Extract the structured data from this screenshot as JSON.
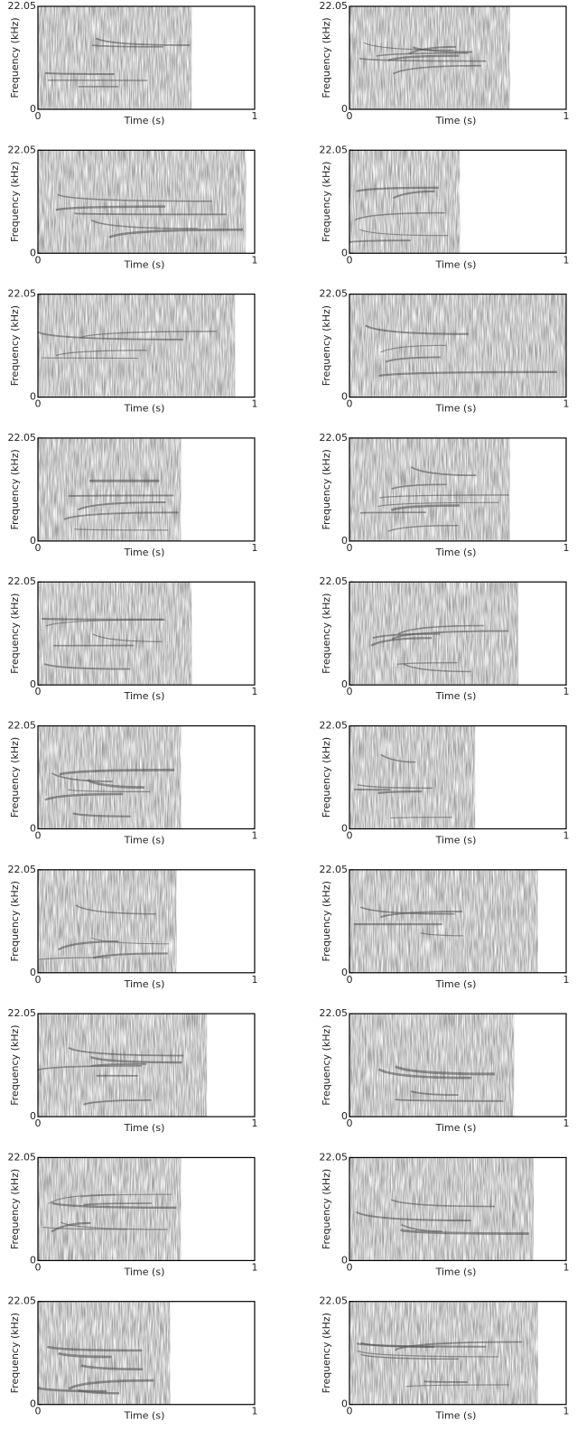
{
  "chart_data": [
    {
      "type": "spectrogram",
      "xlabel": "Time (s)",
      "ylabel": "Frequency (kHz)",
      "xlim": [
        0,
        1
      ],
      "ylim": [
        0,
        22.05
      ],
      "xticks": [
        0,
        1
      ],
      "yticks": [
        0,
        22.05
      ],
      "duration": 0.71
    },
    {
      "type": "spectrogram",
      "xlabel": "Time (s)",
      "ylabel": "Frequency (kHz)",
      "xlim": [
        0,
        1
      ],
      "ylim": [
        0,
        22.05
      ],
      "xticks": [
        0,
        1
      ],
      "yticks": [
        0,
        22.05
      ],
      "duration": 0.74
    },
    {
      "type": "spectrogram",
      "xlabel": "Time (s)",
      "ylabel": "Frequency (kHz)",
      "xlim": [
        0,
        1
      ],
      "ylim": [
        0,
        22.05
      ],
      "xticks": [
        0,
        1
      ],
      "yticks": [
        0,
        22.05
      ],
      "duration": 0.96
    },
    {
      "type": "spectrogram",
      "xlabel": "Time (s)",
      "ylabel": "Frequency (kHz)",
      "xlim": [
        0,
        1
      ],
      "ylim": [
        0,
        22.05
      ],
      "xticks": [
        0,
        1
      ],
      "yticks": [
        0,
        22.05
      ],
      "duration": 0.51
    },
    {
      "type": "spectrogram",
      "xlabel": "Time (s)",
      "ylabel": "Frequency (kHz)",
      "xlim": [
        0,
        1
      ],
      "ylim": [
        0,
        22.05
      ],
      "xticks": [
        0,
        1
      ],
      "yticks": [
        0,
        22.05
      ],
      "duration": 0.91
    },
    {
      "type": "spectrogram",
      "xlabel": "Time (s)",
      "ylabel": "Frequency (kHz)",
      "xlim": [
        0,
        1
      ],
      "ylim": [
        0,
        22.05
      ],
      "xticks": [
        0,
        1
      ],
      "yticks": [
        0,
        22.05
      ],
      "duration": 1
    },
    {
      "type": "spectrogram",
      "xlabel": "Time (s)",
      "ylabel": "Frequency (kHz)",
      "xlim": [
        0,
        1
      ],
      "ylim": [
        0,
        22.05
      ],
      "xticks": [
        0,
        1
      ],
      "yticks": [
        0,
        22.05
      ],
      "duration": 0.66
    },
    {
      "type": "spectrogram",
      "xlabel": "Time (s)",
      "ylabel": "Frequency (kHz)",
      "xlim": [
        0,
        1
      ],
      "ylim": [
        0,
        22.05
      ],
      "xticks": [
        0,
        1
      ],
      "yticks": [
        0,
        22.05
      ],
      "duration": 0.74
    },
    {
      "type": "spectrogram",
      "xlabel": "Time (s)",
      "ylabel": "Frequency (kHz)",
      "xlim": [
        0,
        1
      ],
      "ylim": [
        0,
        22.05
      ],
      "xticks": [
        0,
        1
      ],
      "yticks": [
        0,
        22.05
      ],
      "duration": 0.71
    },
    {
      "type": "spectrogram",
      "xlabel": "Time (s)",
      "ylabel": "Frequency (kHz)",
      "xlim": [
        0,
        1
      ],
      "ylim": [
        0,
        22.05
      ],
      "xticks": [
        0,
        1
      ],
      "yticks": [
        0,
        22.05
      ],
      "duration": 0.78
    },
    {
      "type": "spectrogram",
      "xlabel": "Time (s)",
      "ylabel": "Frequency (kHz)",
      "xlim": [
        0,
        1
      ],
      "ylim": [
        0,
        22.05
      ],
      "xticks": [
        0,
        1
      ],
      "yticks": [
        0,
        22.05
      ],
      "duration": 0.66
    },
    {
      "type": "spectrogram",
      "xlabel": "Time (s)",
      "ylabel": "Frequency (kHz)",
      "xlim": [
        0,
        1
      ],
      "ylim": [
        0,
        22.05
      ],
      "xticks": [
        0,
        1
      ],
      "yticks": [
        0,
        22.05
      ],
      "duration": 0.58
    },
    {
      "type": "spectrogram",
      "xlabel": "Time (s)",
      "ylabel": "Frequency (kHz)",
      "xlim": [
        0,
        1
      ],
      "ylim": [
        0,
        22.05
      ],
      "xticks": [
        0,
        1
      ],
      "yticks": [
        0,
        22.05
      ],
      "duration": 0.64
    },
    {
      "type": "spectrogram",
      "xlabel": "Time (s)",
      "ylabel": "Frequency (kHz)",
      "xlim": [
        0,
        1
      ],
      "ylim": [
        0,
        22.05
      ],
      "xticks": [
        0,
        1
      ],
      "yticks": [
        0,
        22.05
      ],
      "duration": 0.87
    },
    {
      "type": "spectrogram",
      "xlabel": "Time (s)",
      "ylabel": "Frequency (kHz)",
      "xlim": [
        0,
        1
      ],
      "ylim": [
        0,
        22.05
      ],
      "xticks": [
        0,
        1
      ],
      "yticks": [
        0,
        22.05
      ],
      "duration": 0.78
    },
    {
      "type": "spectrogram",
      "xlabel": "Time (s)",
      "ylabel": "Frequency (kHz)",
      "xlim": [
        0,
        1
      ],
      "ylim": [
        0,
        22.05
      ],
      "xticks": [
        0,
        1
      ],
      "yticks": [
        0,
        22.05
      ],
      "duration": 0.76
    },
    {
      "type": "spectrogram",
      "xlabel": "Time (s)",
      "ylabel": "Frequency (kHz)",
      "xlim": [
        0,
        1
      ],
      "ylim": [
        0,
        22.05
      ],
      "xticks": [
        0,
        1
      ],
      "yticks": [
        0,
        22.05
      ],
      "duration": 0.66
    },
    {
      "type": "spectrogram",
      "xlabel": "Time (s)",
      "ylabel": "Frequency (kHz)",
      "xlim": [
        0,
        1
      ],
      "ylim": [
        0,
        22.05
      ],
      "xticks": [
        0,
        1
      ],
      "yticks": [
        0,
        22.05
      ],
      "duration": 0.85
    },
    {
      "type": "spectrogram",
      "xlabel": "Time (s)",
      "ylabel": "Frequency (kHz)",
      "xlim": [
        0,
        1
      ],
      "ylim": [
        0,
        22.05
      ],
      "xticks": [
        0,
        1
      ],
      "yticks": [
        0,
        22.05
      ],
      "duration": 0.61
    },
    {
      "type": "spectrogram",
      "xlabel": "Time (s)",
      "ylabel": "Frequency (kHz)",
      "xlim": [
        0,
        1
      ],
      "ylim": [
        0,
        22.05
      ],
      "xticks": [
        0,
        1
      ],
      "yticks": [
        0,
        22.05
      ],
      "duration": 0.87
    }
  ]
}
